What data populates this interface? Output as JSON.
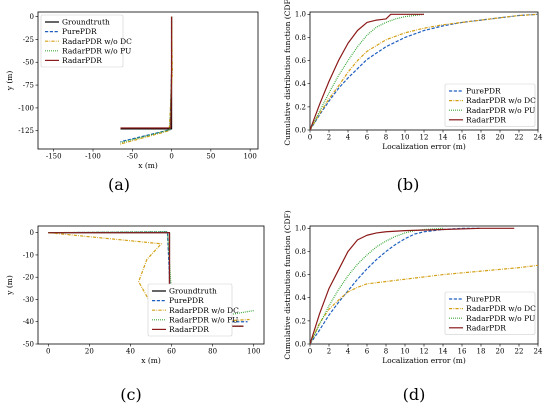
{
  "chart_data": [
    {
      "panel_label": "(a)",
      "type": "line",
      "xlabel": "x (m)",
      "ylabel": "y (m)",
      "xlim": [
        -170,
        110
      ],
      "ylim": [
        -145,
        5
      ],
      "xticks": [
        -150,
        -100,
        -50,
        0,
        50,
        100
      ],
      "yticks": [
        0,
        -25,
        -50,
        -75,
        -100,
        -125
      ],
      "legend_position": "top-left",
      "series": [
        {
          "name": "Groundtruth",
          "color": "#000000",
          "dash": "solid",
          "x": [
            0,
            0,
            -65
          ],
          "y": [
            0,
            -123,
            -123
          ]
        },
        {
          "name": "PurePDR",
          "color": "#1f5fbf",
          "dash": "dashed",
          "x": [
            0,
            0,
            -2,
            -65
          ],
          "y": [
            0,
            -60,
            -124,
            -137
          ]
        },
        {
          "name": "RadarPDR w/o DC",
          "color": "#d4a017",
          "dash": "dashdot",
          "x": [
            0,
            1,
            -3,
            -67
          ],
          "y": [
            0,
            -60,
            -125,
            -140
          ]
        },
        {
          "name": "RadarPDR w/o PU",
          "color": "#2ca02c",
          "dash": "dotted",
          "x": [
            0,
            0,
            -2,
            -65
          ],
          "y": [
            0,
            -60,
            -124,
            -138
          ]
        },
        {
          "name": "RadarPDR",
          "color": "#8b1a1a",
          "dash": "solid",
          "x": [
            0,
            0,
            -1,
            -65
          ],
          "y": [
            0,
            -60,
            -122,
            -122
          ]
        }
      ]
    },
    {
      "panel_label": "(b)",
      "type": "line",
      "xlabel": "Localization error (m)",
      "ylabel": "Cumulative distribution function (CDF)",
      "xlim": [
        0,
        24
      ],
      "ylim": [
        0,
        1.02
      ],
      "xticks": [
        0,
        2,
        4,
        6,
        8,
        10,
        12,
        14,
        16,
        18,
        20,
        22,
        24
      ],
      "yticks": [
        0,
        0.2,
        0.4,
        0.6,
        0.8,
        1.0
      ],
      "legend_position": "bottom-right",
      "series": [
        {
          "name": "PurePDR",
          "color": "#1f5fbf",
          "dash": "dashed",
          "x": [
            0,
            1,
            2,
            3,
            4,
            5,
            6,
            8,
            10,
            12,
            14,
            16,
            18,
            20,
            22,
            24
          ],
          "y": [
            0,
            0.13,
            0.25,
            0.36,
            0.45,
            0.53,
            0.61,
            0.72,
            0.8,
            0.86,
            0.9,
            0.93,
            0.95,
            0.97,
            0.99,
            1.0
          ]
        },
        {
          "name": "RadarPDR w/o DC",
          "color": "#d4a017",
          "dash": "dashdot",
          "x": [
            0,
            1,
            2,
            3,
            4,
            5,
            6,
            8,
            10,
            12,
            14,
            16,
            18,
            20,
            22,
            24
          ],
          "y": [
            0,
            0.14,
            0.27,
            0.38,
            0.5,
            0.6,
            0.68,
            0.78,
            0.84,
            0.88,
            0.91,
            0.93,
            0.95,
            0.97,
            0.99,
            1.0
          ]
        },
        {
          "name": "RadarPDR w/o PU",
          "color": "#2ca02c",
          "dash": "dotted",
          "x": [
            0,
            1,
            2,
            3,
            4,
            5,
            6,
            7,
            8,
            9,
            10,
            11,
            12
          ],
          "y": [
            0,
            0.16,
            0.32,
            0.47,
            0.6,
            0.72,
            0.82,
            0.89,
            0.93,
            0.96,
            0.98,
            0.99,
            1.0
          ]
        },
        {
          "name": "RadarPDR",
          "color": "#8b1a1a",
          "dash": "solid",
          "x": [
            0,
            1,
            2,
            3,
            4,
            5,
            6,
            7,
            8,
            8.5,
            10,
            12
          ],
          "y": [
            0,
            0.22,
            0.42,
            0.6,
            0.75,
            0.86,
            0.93,
            0.95,
            0.96,
            1.0,
            1.0,
            1.0
          ]
        }
      ]
    },
    {
      "panel_label": "(c)",
      "type": "line",
      "xlabel": "x (m)",
      "ylabel": "y (m)",
      "xlim": [
        -5,
        105
      ],
      "ylim": [
        -50,
        3
      ],
      "xticks": [
        0,
        20,
        40,
        60,
        80,
        100
      ],
      "yticks": [
        0,
        -10,
        -20,
        -30,
        -40,
        -50
      ],
      "legend_position": "bottom-center",
      "series": [
        {
          "name": "Groundtruth",
          "color": "#000000",
          "dash": "solid",
          "x": [
            0,
            59,
            59,
            95
          ],
          "y": [
            0,
            0,
            -42,
            -42
          ]
        },
        {
          "name": "PurePDR",
          "color": "#1f5fbf",
          "dash": "dashed",
          "x": [
            0,
            58,
            60,
            97
          ],
          "y": [
            0,
            0.3,
            -40,
            -40
          ]
        },
        {
          "name": "RadarPDR w/o DC",
          "color": "#d4a017",
          "dash": "dashdot",
          "x": [
            0,
            55,
            48,
            44,
            50,
            57,
            60,
            98
          ],
          "y": [
            0,
            -5,
            -12,
            -22,
            -32,
            -38,
            -41,
            -39
          ]
        },
        {
          "name": "RadarPDR w/o PU",
          "color": "#2ca02c",
          "dash": "dotted",
          "x": [
            0,
            58,
            61,
            100
          ],
          "y": [
            0,
            0.5,
            -41,
            -35
          ]
        },
        {
          "name": "RadarPDR",
          "color": "#8b1a1a",
          "dash": "solid",
          "x": [
            0,
            59,
            59,
            95
          ],
          "y": [
            0,
            0,
            -42,
            -42
          ]
        }
      ]
    },
    {
      "panel_label": "(d)",
      "type": "line",
      "xlabel": "Localization error (m)",
      "ylabel": "Cumulative distribution function (CDF)",
      "xlim": [
        0,
        24
      ],
      "ylim": [
        0,
        1.02
      ],
      "xticks": [
        0,
        2,
        4,
        6,
        8,
        10,
        12,
        14,
        16,
        18,
        20,
        22,
        24
      ],
      "yticks": [
        0,
        0.2,
        0.4,
        0.6,
        0.8,
        1.0
      ],
      "legend_position": "bottom-right",
      "series": [
        {
          "name": "PurePDR",
          "color": "#1f5fbf",
          "dash": "dashed",
          "x": [
            0,
            1,
            2,
            3,
            4,
            5,
            6,
            7,
            8,
            9,
            10,
            11,
            12,
            14,
            16,
            18
          ],
          "y": [
            0,
            0.12,
            0.25,
            0.36,
            0.46,
            0.56,
            0.65,
            0.73,
            0.8,
            0.86,
            0.91,
            0.95,
            0.97,
            0.99,
            1.0,
            1.0
          ]
        },
        {
          "name": "RadarPDR w/o DC",
          "color": "#d4a017",
          "dash": "dashdot",
          "x": [
            0,
            1,
            2,
            3,
            4,
            5,
            6,
            8,
            10,
            14,
            18,
            22,
            24
          ],
          "y": [
            0,
            0.18,
            0.3,
            0.38,
            0.45,
            0.49,
            0.52,
            0.54,
            0.56,
            0.6,
            0.63,
            0.66,
            0.68
          ]
        },
        {
          "name": "RadarPDR w/o PU",
          "color": "#2ca02c",
          "dash": "dotted",
          "x": [
            0,
            1,
            2,
            3,
            4,
            5,
            6,
            7,
            8,
            9,
            10,
            11,
            12,
            14
          ],
          "y": [
            0,
            0.17,
            0.33,
            0.47,
            0.59,
            0.69,
            0.77,
            0.84,
            0.89,
            0.93,
            0.96,
            0.98,
            0.99,
            1.0
          ]
        },
        {
          "name": "RadarPDR",
          "color": "#8b1a1a",
          "dash": "solid",
          "x": [
            0,
            1,
            2,
            3,
            4,
            5,
            6,
            7,
            8,
            10,
            14,
            18,
            21.5
          ],
          "y": [
            0,
            0.26,
            0.48,
            0.64,
            0.8,
            0.9,
            0.94,
            0.96,
            0.97,
            0.98,
            0.99,
            1.0,
            1.0
          ]
        }
      ]
    }
  ]
}
